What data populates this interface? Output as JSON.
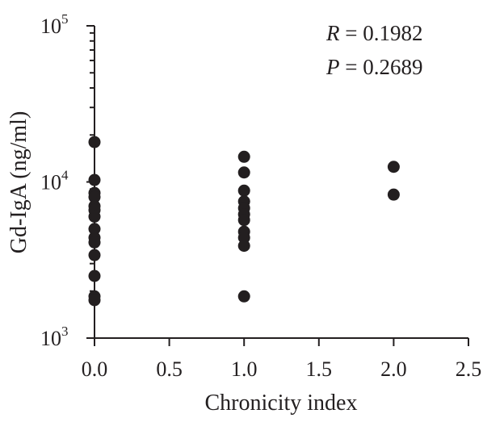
{
  "chart_data": {
    "type": "scatter",
    "xlabel": "Chronicity index",
    "ylabel": "Gd-IgA (ng/ml)",
    "xlim": [
      0,
      2.5
    ],
    "ylim": [
      1000,
      100000
    ],
    "y_scale": "log",
    "x_ticks": [
      "0.0",
      "0.5",
      "1.0",
      "1.5",
      "2.0",
      "2.5"
    ],
    "y_ticks": [
      {
        "value": 1000,
        "base": "10",
        "exp": "3"
      },
      {
        "value": 10000,
        "base": "10",
        "exp": "4"
      },
      {
        "value": 100000,
        "base": "10",
        "exp": "5"
      }
    ],
    "annotations": {
      "r_var": "R",
      "r_text": " = 0.1982",
      "p_var": "P",
      "p_text": " = 0.2689"
    },
    "series": [
      {
        "points": [
          [
            0,
            18000
          ],
          [
            0,
            10300
          ],
          [
            0,
            8500
          ],
          [
            0,
            8000
          ],
          [
            0,
            7000
          ],
          [
            0,
            6600
          ],
          [
            0,
            6000
          ],
          [
            0,
            5000
          ],
          [
            0,
            4400
          ],
          [
            0,
            4100
          ],
          [
            0,
            3400
          ],
          [
            0,
            2500
          ],
          [
            0,
            1850
          ],
          [
            0,
            1750
          ],
          [
            1,
            14500
          ],
          [
            1,
            11500
          ],
          [
            1,
            8800
          ],
          [
            1,
            7500
          ],
          [
            1,
            6800
          ],
          [
            1,
            6200
          ],
          [
            1,
            5700
          ],
          [
            1,
            4800
          ],
          [
            1,
            4400
          ],
          [
            1,
            3900
          ],
          [
            1,
            1850
          ],
          [
            2,
            12500
          ],
          [
            2,
            8300
          ]
        ]
      }
    ],
    "colors": {
      "ink": "#231f20"
    }
  }
}
